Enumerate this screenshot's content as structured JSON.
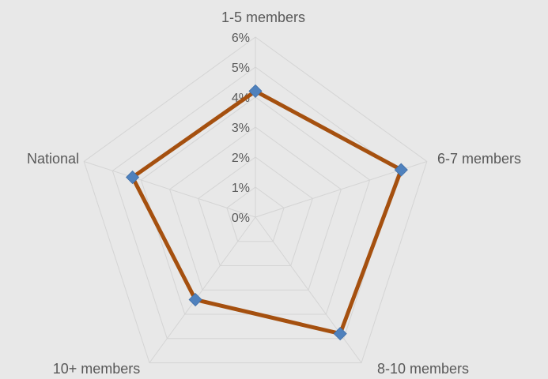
{
  "chart_data": {
    "type": "radar",
    "categories": [
      "1-5 members",
      "6-7 members",
      "8-10 members",
      "10+ members",
      "National"
    ],
    "series": [
      {
        "values": [
          4.2,
          5.1,
          4.8,
          3.4,
          4.3
        ],
        "line_color": "#a5500f",
        "marker_color": "#4f81bd",
        "marker": "diamond"
      }
    ],
    "r_ticks": [
      "0%",
      "1%",
      "2%",
      "3%",
      "4%",
      "5%",
      "6%"
    ],
    "r_range": [
      0,
      6
    ],
    "gridlines": true,
    "legend": false
  },
  "colors": {
    "background": "#e8e8e8",
    "grid": "#d4d4d4",
    "text": "#595959"
  }
}
